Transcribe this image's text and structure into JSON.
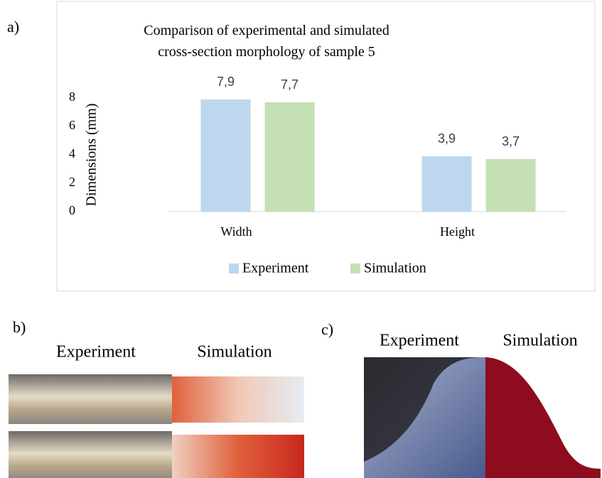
{
  "chart_data": {
    "type": "bar",
    "title": "Comparison of experimental and simulated cross-section morphology of sample 5",
    "y_label": "Dimensions (mm)",
    "categories": [
      "Width",
      "Height"
    ],
    "series": [
      {
        "name": "Experiment",
        "color": "#bdd7ee",
        "values": [
          7.9,
          3.9
        ],
        "value_labels": [
          "7,9",
          "3,9"
        ]
      },
      {
        "name": "Simulation",
        "color": "#c5e0b4",
        "values": [
          7.7,
          3.7
        ],
        "value_labels": [
          "7,7",
          "3,7"
        ]
      }
    ],
    "ylim": [
      0,
      10
    ],
    "yticks": [
      0,
      2,
      4,
      6,
      8
    ],
    "grid": false,
    "legend": "bottom"
  },
  "panels": {
    "a": {
      "label": "a)"
    },
    "b": {
      "label": "b)",
      "left": "Experiment",
      "right": "Simulation"
    },
    "c": {
      "label": "c)",
      "left": "Experiment",
      "right": "Simulation"
    }
  }
}
